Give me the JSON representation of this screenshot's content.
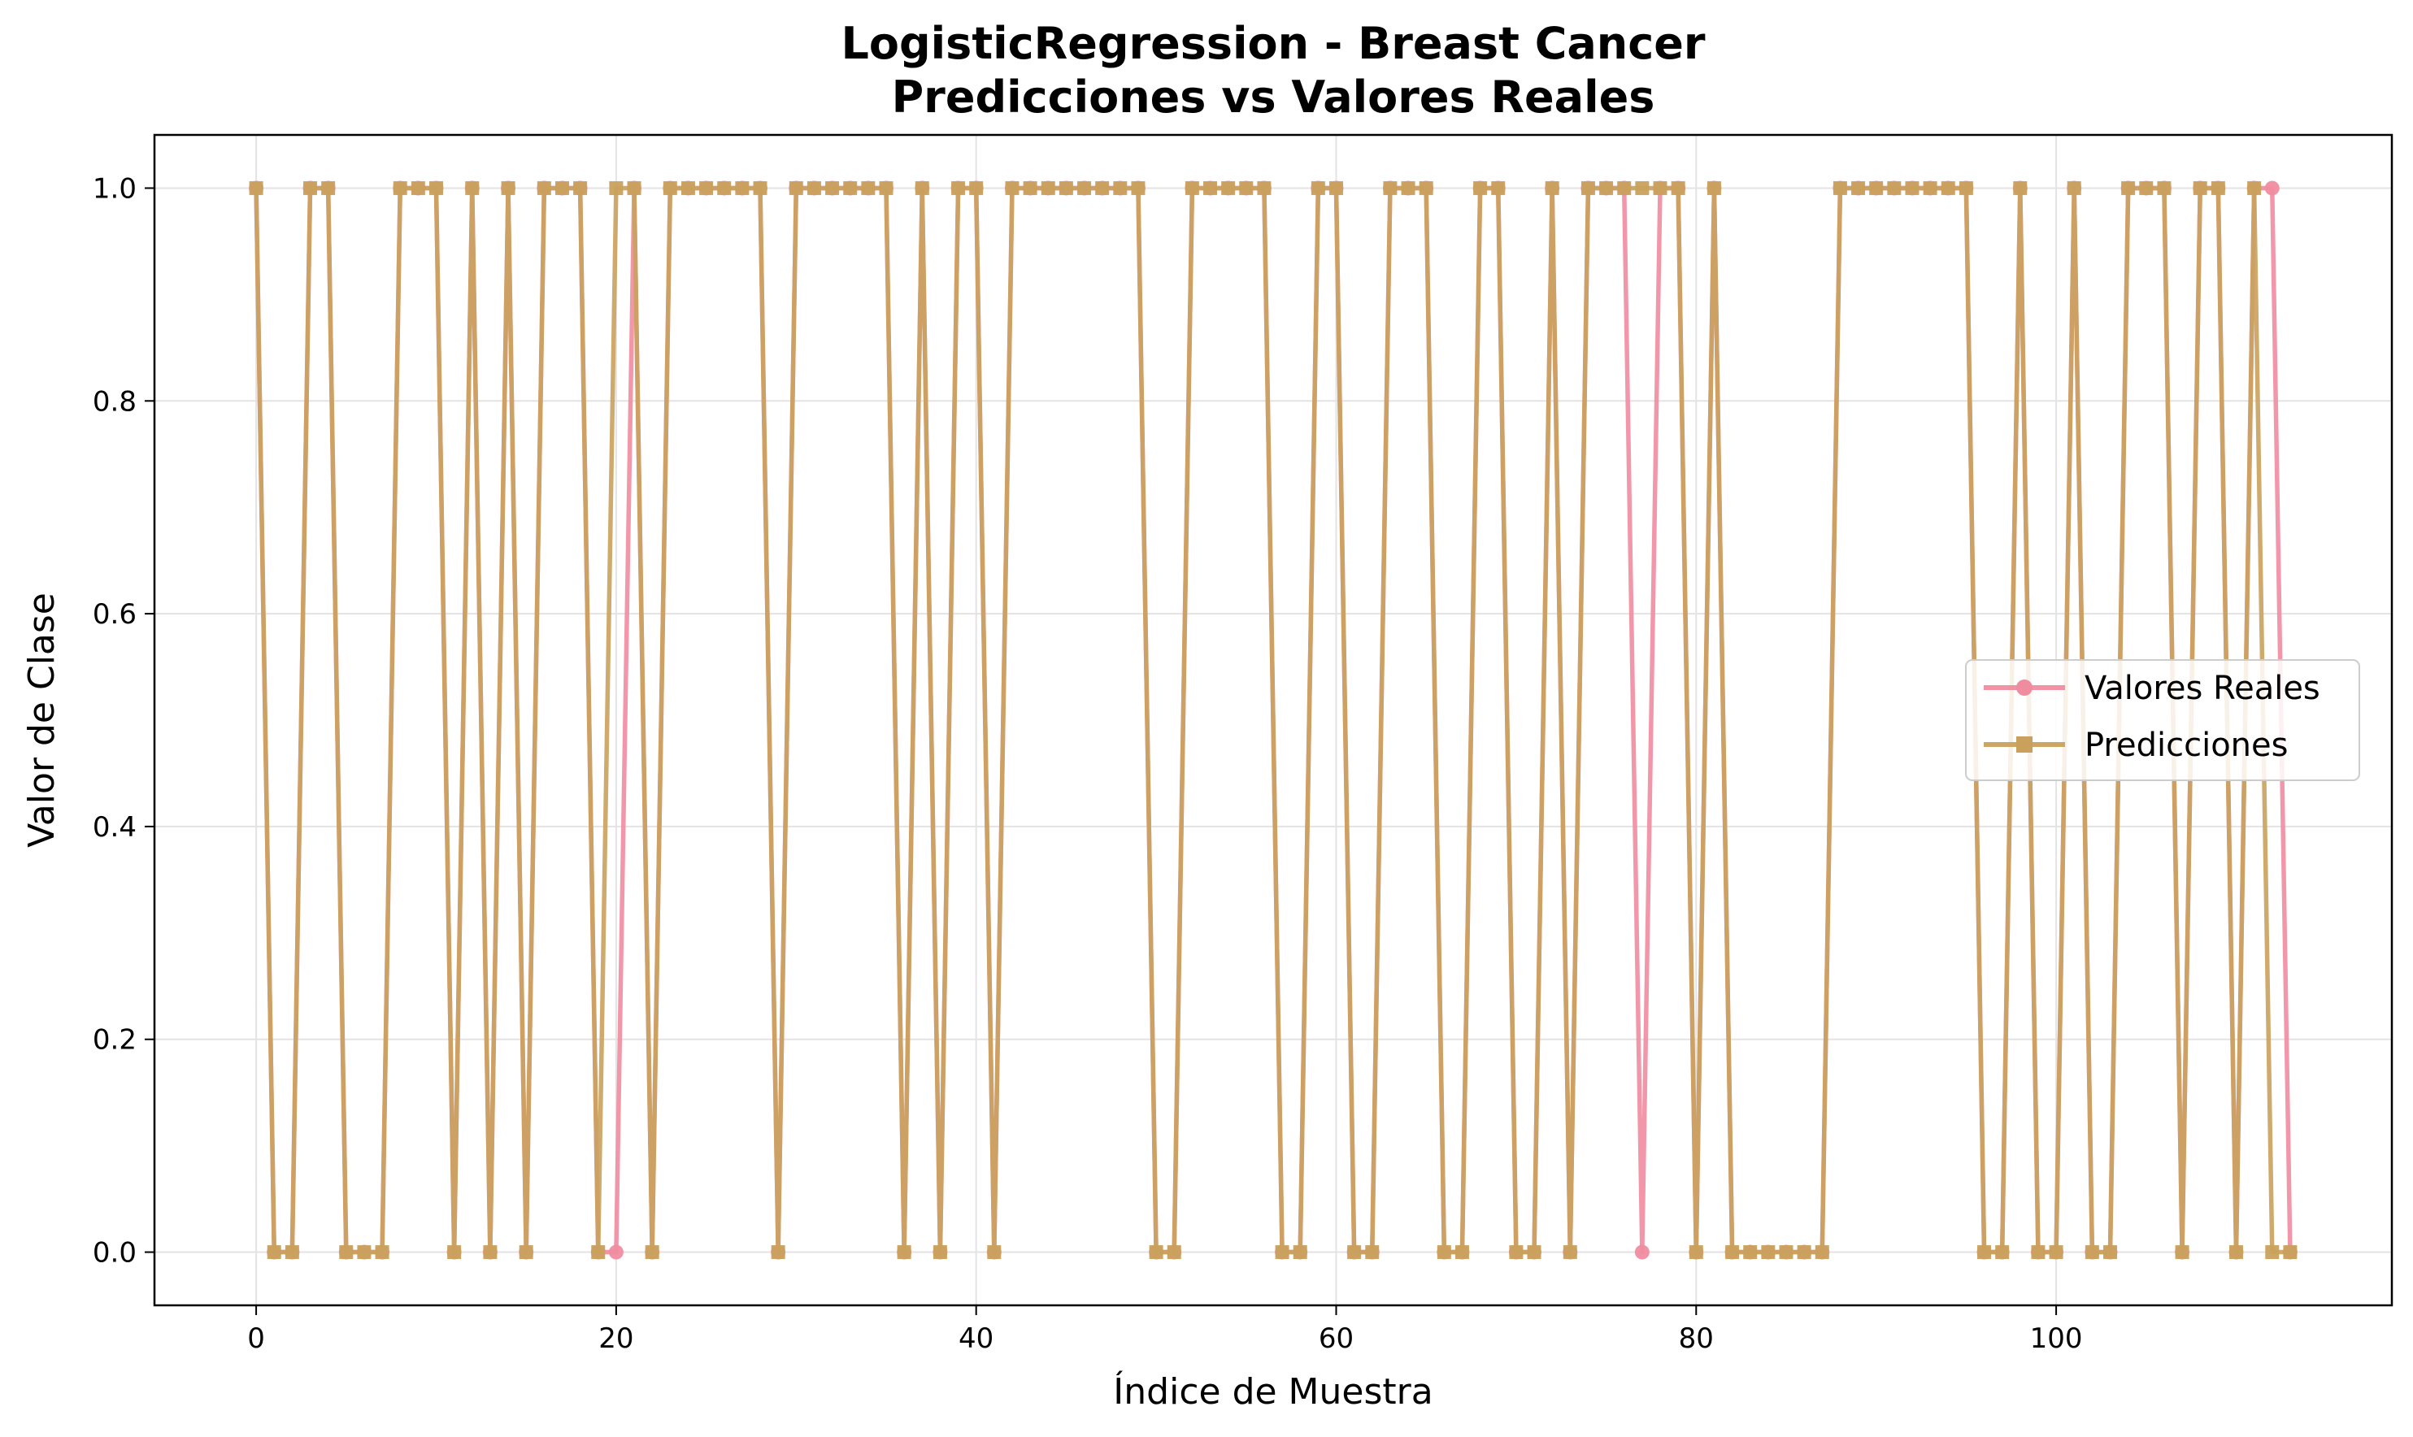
{
  "chart_data": {
    "type": "line",
    "title": "LogisticRegression - Breast Cancer",
    "subtitle": "Predicciones vs Valores Reales",
    "xlabel": "Índice de Muestra",
    "ylabel": "Valor de Clase",
    "xlim": [
      -5.65,
      118.65
    ],
    "ylim": [
      -0.05,
      1.05
    ],
    "x_ticks": [
      0,
      20,
      40,
      60,
      80,
      100
    ],
    "x_tick_labels": [
      "0",
      "20",
      "40",
      "60",
      "80",
      "100"
    ],
    "y_ticks": [
      0.0,
      0.2,
      0.4,
      0.6,
      0.8,
      1.0
    ],
    "y_tick_labels": [
      "0.0",
      "0.2",
      "0.4",
      "0.6",
      "0.8",
      "1.0"
    ],
    "grid": true,
    "legend_position": "center-right",
    "x_start": 0,
    "series": [
      {
        "name": "Valores Reales",
        "color": "#f08ca0",
        "marker": "circle",
        "values": [
          1,
          0,
          0,
          1,
          1,
          0,
          0,
          0,
          1,
          1,
          1,
          0,
          1,
          0,
          1,
          0,
          1,
          1,
          1,
          0,
          0,
          1,
          0,
          1,
          1,
          1,
          1,
          1,
          1,
          0,
          1,
          1,
          1,
          1,
          1,
          1,
          0,
          1,
          0,
          1,
          1,
          0,
          1,
          1,
          1,
          1,
          1,
          1,
          1,
          1,
          0,
          0,
          1,
          1,
          1,
          1,
          1,
          0,
          0,
          1,
          1,
          0,
          0,
          1,
          1,
          1,
          0,
          0,
          1,
          1,
          0,
          0,
          1,
          0,
          1,
          1,
          1,
          0,
          1,
          1,
          0,
          1,
          0,
          0,
          0,
          0,
          0,
          0,
          1,
          1,
          1,
          1,
          1,
          1,
          1,
          1,
          0,
          0,
          1,
          0,
          0,
          1,
          0,
          0,
          1,
          1,
          1,
          0,
          1,
          1,
          0,
          1,
          1,
          0
        ]
      },
      {
        "name": "Predicciones",
        "color": "#c9a15c",
        "marker": "square",
        "values": [
          1,
          0,
          0,
          1,
          1,
          0,
          0,
          0,
          1,
          1,
          1,
          0,
          1,
          0,
          1,
          0,
          1,
          1,
          1,
          0,
          1,
          1,
          0,
          1,
          1,
          1,
          1,
          1,
          1,
          0,
          1,
          1,
          1,
          1,
          1,
          1,
          0,
          1,
          0,
          1,
          1,
          0,
          1,
          1,
          1,
          1,
          1,
          1,
          1,
          1,
          0,
          0,
          1,
          1,
          1,
          1,
          1,
          0,
          0,
          1,
          1,
          0,
          0,
          1,
          1,
          1,
          0,
          0,
          1,
          1,
          0,
          0,
          1,
          0,
          1,
          1,
          1,
          1,
          1,
          1,
          0,
          1,
          0,
          0,
          0,
          0,
          0,
          0,
          1,
          1,
          1,
          1,
          1,
          1,
          1,
          1,
          0,
          0,
          1,
          0,
          0,
          1,
          0,
          0,
          1,
          1,
          1,
          0,
          1,
          1,
          0,
          1,
          0,
          0
        ]
      }
    ]
  }
}
